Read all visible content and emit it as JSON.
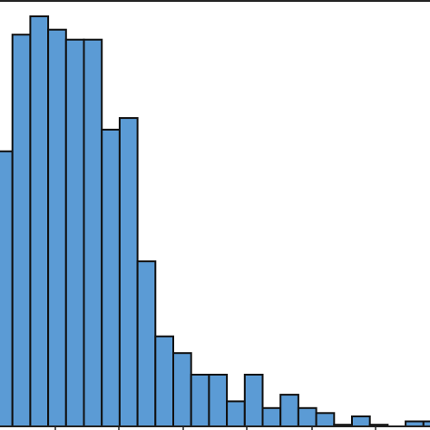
{
  "chart_data": {
    "type": "bar",
    "subtype": "histogram",
    "values": [
      16.5,
      23.5,
      24.6,
      23.8,
      23.2,
      23.2,
      17.8,
      18.5,
      9.9,
      5.4,
      4.4,
      3.1,
      3.1,
      1.5,
      3.1,
      1.1,
      1.9,
      1.1,
      0.8,
      0.1,
      0.6,
      0.1,
      0,
      0.3,
      0.3
    ],
    "bar_color": "#5b9bd5",
    "edge_color": "#111111",
    "grid": false
  }
}
